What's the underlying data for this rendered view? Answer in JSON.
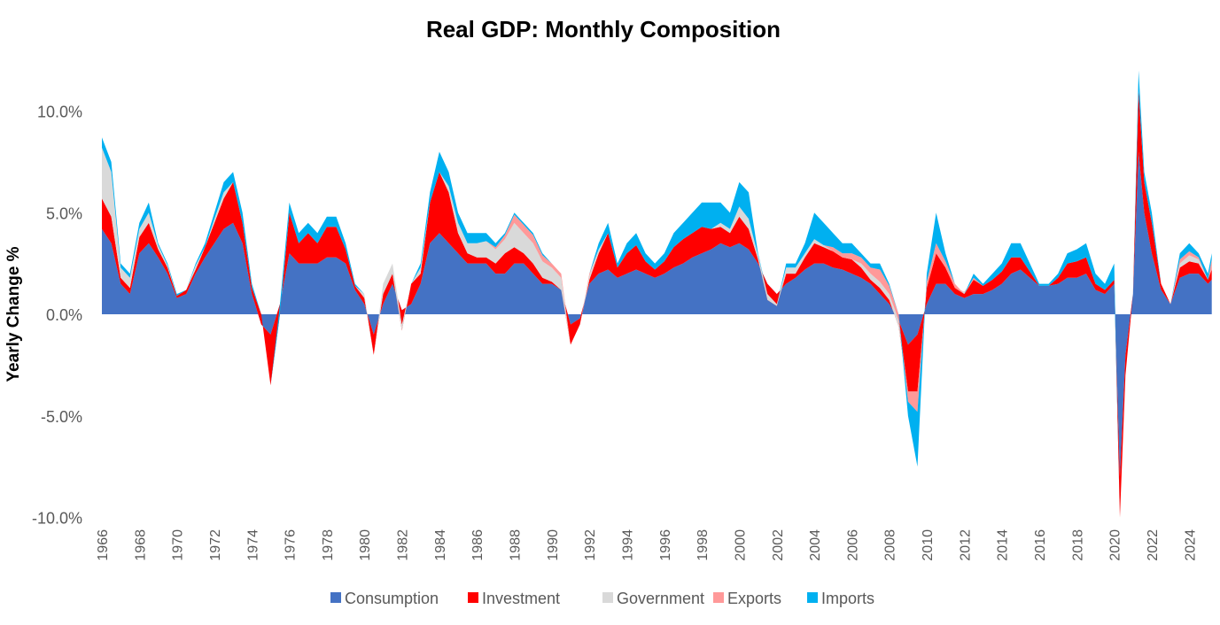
{
  "chart_data": {
    "type": "area",
    "stacked": true,
    "title": "Real GDP: Monthly Composition",
    "xlabel": "",
    "ylabel": "Yearly Change %",
    "ylim": [
      -10,
      12
    ],
    "yticks": [
      10,
      5,
      0,
      -5,
      -10
    ],
    "ytick_labels": [
      "10.0%",
      "5.0%",
      "0.0%",
      "-5.0%",
      "-10.0%"
    ],
    "xlim": [
      1966,
      2025.6
    ],
    "xtick_labels": [
      "1966",
      "1968",
      "1970",
      "1972",
      "1974",
      "1976",
      "1978",
      "1980",
      "1982",
      "1984",
      "1986",
      "1988",
      "1990",
      "1992",
      "1994",
      "1996",
      "1998",
      "2000",
      "2002",
      "2004",
      "2006",
      "2008",
      "2010",
      "2012",
      "2014",
      "2016",
      "2018",
      "2020",
      "2022",
      "2024"
    ],
    "legend_position": "bottom",
    "grid": false,
    "x": [
      1966.0,
      1966.5,
      1967.0,
      1967.5,
      1968.0,
      1968.5,
      1969.0,
      1969.5,
      1970.0,
      1970.5,
      1971.0,
      1971.5,
      1972.0,
      1972.5,
      1973.0,
      1973.5,
      1974.0,
      1974.5,
      1975.0,
      1975.5,
      1976.0,
      1976.5,
      1977.0,
      1977.5,
      1978.0,
      1978.5,
      1979.0,
      1979.5,
      1980.0,
      1980.5,
      1981.0,
      1981.5,
      1982.0,
      1982.5,
      1983.0,
      1983.5,
      1984.0,
      1984.5,
      1985.0,
      1985.5,
      1986.0,
      1986.5,
      1987.0,
      1987.5,
      1988.0,
      1988.5,
      1989.0,
      1989.5,
      1990.0,
      1990.5,
      1991.0,
      1991.5,
      1992.0,
      1992.5,
      1993.0,
      1993.5,
      1994.0,
      1994.5,
      1995.0,
      1995.5,
      1996.0,
      1996.5,
      1997.0,
      1997.5,
      1998.0,
      1998.5,
      1999.0,
      1999.5,
      2000.0,
      2000.5,
      2001.0,
      2001.5,
      2002.0,
      2002.5,
      2003.0,
      2003.5,
      2004.0,
      2004.5,
      2005.0,
      2005.5,
      2006.0,
      2006.5,
      2007.0,
      2007.5,
      2008.0,
      2008.5,
      2009.0,
      2009.5,
      2010.0,
      2010.5,
      2011.0,
      2011.5,
      2012.0,
      2012.5,
      2013.0,
      2013.5,
      2014.0,
      2014.5,
      2015.0,
      2015.5,
      2016.0,
      2016.5,
      2017.0,
      2017.5,
      2018.0,
      2018.5,
      2019.0,
      2019.5,
      2020.0,
      2020.3,
      2020.6,
      2021.0,
      2021.3,
      2021.6,
      2022.0,
      2022.5,
      2023.0,
      2023.5,
      2024.0,
      2024.5,
      2025.0,
      2025.2
    ],
    "series": [
      {
        "name": "Consumption",
        "color": "#4472C4",
        "values": [
          4.2,
          3.5,
          1.5,
          1.0,
          3.0,
          3.5,
          2.8,
          2.0,
          0.8,
          1.0,
          2.0,
          2.8,
          3.5,
          4.2,
          4.5,
          3.5,
          1.0,
          -0.5,
          -1.0,
          0.5,
          3.0,
          2.5,
          2.5,
          2.5,
          2.8,
          2.8,
          2.5,
          1.2,
          0.5,
          -1.0,
          0.5,
          1.5,
          0.2,
          0.5,
          1.5,
          3.5,
          4.0,
          3.5,
          3.0,
          2.5,
          2.5,
          2.5,
          2.0,
          2.0,
          2.5,
          2.5,
          2.0,
          1.5,
          1.5,
          1.2,
          -0.5,
          -0.2,
          1.5,
          2.0,
          2.2,
          1.8,
          2.0,
          2.2,
          2.0,
          1.8,
          2.0,
          2.3,
          2.5,
          2.8,
          3.0,
          3.2,
          3.5,
          3.3,
          3.5,
          3.2,
          2.5,
          1.5,
          1.0,
          1.5,
          1.8,
          2.2,
          2.5,
          2.5,
          2.3,
          2.2,
          2.0,
          1.8,
          1.5,
          1.0,
          0.5,
          -0.3,
          -1.5,
          -1.0,
          0.5,
          1.5,
          1.5,
          1.0,
          0.8,
          1.0,
          1.0,
          1.2,
          1.5,
          2.0,
          2.2,
          1.8,
          1.4,
          1.4,
          1.5,
          1.8,
          1.8,
          2.0,
          1.2,
          1.0,
          1.5,
          -8.0,
          -2.0,
          1.0,
          8.0,
          5.0,
          3.0,
          1.2,
          0.5,
          1.8,
          2.0,
          2.0,
          1.5,
          1.7
        ]
      },
      {
        "name": "Investment",
        "color": "#FF0000",
        "values": [
          1.5,
          1.3,
          0.3,
          0.3,
          0.8,
          1.0,
          0.4,
          0.3,
          0.1,
          0.2,
          0.2,
          0.5,
          1.0,
          1.5,
          2.0,
          1.0,
          0.3,
          0.5,
          -2.5,
          -0.5,
          2.0,
          1.0,
          1.5,
          1.0,
          1.5,
          1.5,
          0.7,
          0.2,
          0.3,
          -1.0,
          0.5,
          0.5,
          -1.0,
          1.0,
          0.5,
          2.0,
          3.0,
          2.5,
          1.0,
          0.5,
          0.3,
          0.3,
          0.5,
          1.0,
          0.8,
          0.5,
          0.5,
          0.3,
          0.1,
          0,
          -1.0,
          -0.3,
          0.2,
          1.0,
          1.8,
          0.5,
          1.0,
          1.2,
          0.6,
          0.4,
          0.6,
          1.0,
          1.2,
          1.2,
          1.3,
          1.0,
          0.8,
          0.7,
          1.3,
          1.0,
          0.2,
          -0.8,
          -0.6,
          0.5,
          0.2,
          0.6,
          1.0,
          0.8,
          0.8,
          0.6,
          0.7,
          0.5,
          0.2,
          0.3,
          0.2,
          -0.3,
          -2.5,
          -3.0,
          0.8,
          1.5,
          0.8,
          0.3,
          0.3,
          0.7,
          0.4,
          0.5,
          0.6,
          0.8,
          0.6,
          0.3,
          0,
          0,
          0.3,
          0.7,
          0.8,
          0.8,
          0.3,
          0.2,
          0.2,
          -2.0,
          -1.0,
          0,
          3.0,
          1.5,
          1.5,
          0.3,
          0,
          0.5,
          0.6,
          0.5,
          0.2,
          0.5
        ]
      },
      {
        "name": "Government",
        "color": "#D9D9D9",
        "values": [
          2.5,
          2.2,
          0.5,
          0.5,
          0.4,
          0.5,
          0.2,
          0.1,
          0,
          0,
          0.2,
          0,
          0.2,
          0.3,
          0,
          0,
          0,
          0,
          0,
          0,
          0,
          0,
          0,
          0,
          0,
          0,
          0,
          0,
          0.2,
          0,
          0.5,
          0.5,
          0.3,
          0,
          0.3,
          0,
          0,
          0.3,
          0.5,
          0.5,
          0.7,
          0.8,
          0.7,
          0.7,
          1.2,
          1.0,
          1.0,
          0.8,
          0.7,
          0.6,
          0,
          0,
          0.2,
          0.2,
          0,
          0,
          0,
          0,
          0,
          0,
          0,
          0,
          0,
          0,
          0,
          0,
          0.2,
          0.2,
          0.5,
          0.5,
          0.2,
          0.3,
          0.1,
          0.3,
          0.3,
          0.2,
          0.2,
          0.1,
          0,
          0,
          0,
          0.2,
          0.3,
          0.3,
          0.3,
          0.3,
          0.2,
          0.2,
          0,
          0,
          0,
          0,
          -0.1,
          0,
          0,
          0,
          0,
          0,
          0,
          0,
          0,
          0,
          0,
          0,
          0,
          0,
          0,
          0,
          0,
          0,
          0,
          0,
          0,
          0,
          0,
          0,
          0,
          0.2,
          0.3,
          0.2,
          0,
          0
        ]
      },
      {
        "name": "Exports",
        "color": "#FF9999",
        "values": [
          0,
          0,
          0,
          0,
          0,
          0,
          0,
          0,
          0,
          0,
          0,
          0,
          0,
          0,
          0,
          0,
          0,
          0,
          0,
          0,
          0,
          0,
          0,
          0,
          0,
          0,
          0,
          0,
          0,
          0,
          0,
          0,
          0,
          0,
          0,
          0,
          0,
          0,
          0,
          0,
          0,
          0,
          0.1,
          0.2,
          0.4,
          0.4,
          0.4,
          0.3,
          0.2,
          0.2,
          0,
          0,
          0.1,
          0,
          0,
          0,
          0,
          0,
          0,
          0,
          0,
          0,
          0,
          0,
          0,
          0,
          0,
          0,
          0,
          0,
          0,
          0,
          0,
          0,
          0,
          0,
          0,
          0,
          0.2,
          0.2,
          0.3,
          0.3,
          0.3,
          0.6,
          0.4,
          0.3,
          -0.5,
          -1.0,
          0.3,
          0.5,
          0.3,
          0.2,
          0,
          0.1,
          0,
          0,
          0,
          0,
          0,
          0,
          0,
          0,
          0,
          0,
          0,
          0,
          0,
          0,
          0,
          0,
          0,
          0,
          0,
          0,
          0,
          0,
          0,
          0.2,
          0.2,
          0.1,
          0,
          0.5
        ]
      },
      {
        "name": "Imports",
        "color": "#00B0F0",
        "values": [
          0.5,
          0.5,
          0.2,
          0.2,
          0.3,
          0.5,
          0.1,
          0.1,
          0.1,
          0,
          0.1,
          0.2,
          0.3,
          0.5,
          0.5,
          0.5,
          0.2,
          0,
          0,
          0.5,
          0.5,
          0.5,
          0.5,
          0.5,
          0.5,
          0.5,
          0.3,
          0.1,
          0,
          0,
          0,
          0,
          0,
          0,
          0.2,
          0.5,
          1.0,
          0.7,
          0.5,
          0.5,
          0.5,
          0.4,
          0.2,
          0.1,
          0.1,
          0.1,
          0.1,
          0.1,
          0,
          0,
          0,
          0,
          0,
          0.3,
          0.5,
          0.2,
          0.5,
          0.6,
          0.4,
          0.3,
          0.4,
          0.7,
          0.8,
          1.0,
          1.2,
          1.3,
          1.0,
          0.8,
          1.2,
          1.3,
          0.1,
          0,
          0,
          0.2,
          0.2,
          0.5,
          1.3,
          1.1,
          0.7,
          0.5,
          0.5,
          0.2,
          0.2,
          0.3,
          0.1,
          0,
          -0.7,
          -2.7,
          0.4,
          1.5,
          0.4,
          0,
          0,
          0.2,
          0.1,
          0.3,
          0.4,
          0.7,
          0.7,
          0.4,
          0.1,
          0.1,
          0.2,
          0.5,
          0.6,
          0.7,
          0.5,
          0.3,
          0.8,
          0,
          0,
          0,
          1.0,
          0.5,
          0.5,
          0,
          0,
          0.3,
          0.4,
          0.2,
          0.3,
          0.3
        ]
      }
    ]
  }
}
